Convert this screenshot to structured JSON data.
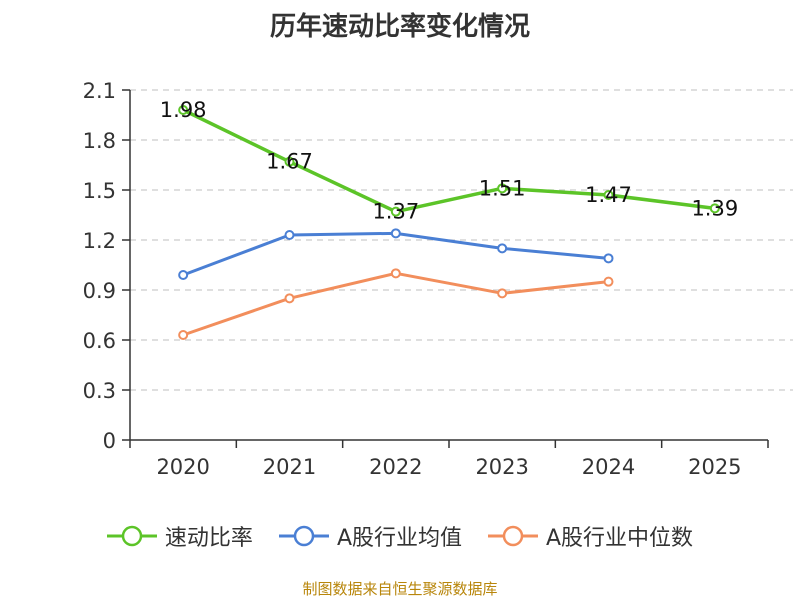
{
  "chart_data": {
    "type": "line",
    "title": "历年速动比率变化情况",
    "categories": [
      "2020",
      "2021",
      "2022",
      "2023",
      "2024",
      "2025"
    ],
    "yticks": [
      "0",
      "0.3",
      "0.6",
      "0.9",
      "1.2",
      "1.5",
      "1.8",
      "2.1"
    ],
    "ylim": [
      0,
      2.1
    ],
    "series": [
      {
        "name": "速动比率",
        "color": "#5cc428",
        "values": [
          1.98,
          1.67,
          1.37,
          1.51,
          1.47,
          1.39
        ],
        "labels": [
          "1.98",
          "1.67",
          "1.37",
          "1.51",
          "1.47",
          "1.39"
        ]
      },
      {
        "name": "A股行业均值",
        "color": "#4a7fd4",
        "values": [
          0.99,
          1.23,
          1.24,
          1.15,
          1.09,
          null
        ]
      },
      {
        "name": "A股行业中位数",
        "color": "#f28e5c",
        "values": [
          0.63,
          0.85,
          1.0,
          0.88,
          0.95,
          null
        ]
      }
    ],
    "source": "制图数据来自恒生聚源数据库"
  }
}
